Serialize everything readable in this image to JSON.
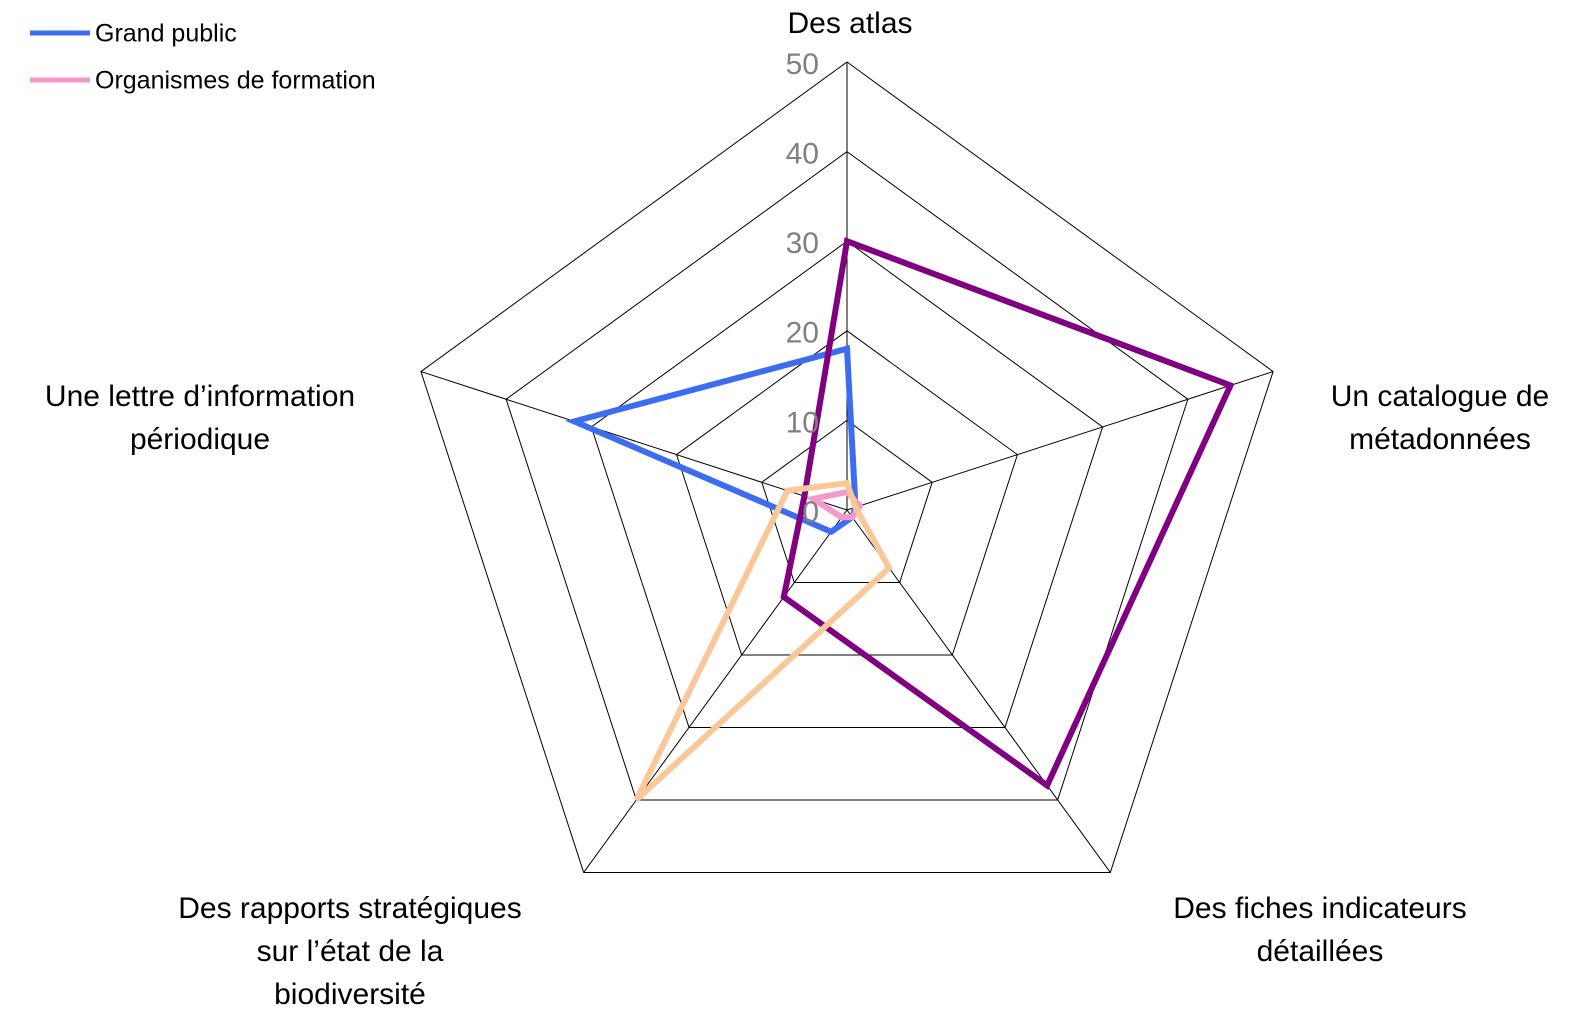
{
  "chart_data": {
    "type": "radar",
    "categories": [
      [
        "Des atlas"
      ],
      [
        "Un catalogue de",
        "métadonnées"
      ],
      [
        "Des fiches indicateurs",
        "détaillées"
      ],
      [
        "Des rapports stratégiques",
        "sur l’état de la",
        "biodiversité"
      ],
      [
        "Une lettre d’information",
        "périodique"
      ]
    ],
    "series": [
      {
        "name": "Grand public",
        "color": "#3c6cf0",
        "values": [
          18,
          1,
          1,
          3,
          32
        ]
      },
      {
        "name": "Organismes de formation",
        "color": "#f49ac8",
        "values": [
          2,
          1.5,
          1,
          1,
          4
        ]
      },
      {
        "color": "#800080",
        "values": [
          30,
          45,
          38,
          12,
          5
        ]
      },
      {
        "color": "#fac898",
        "values": [
          3,
          1,
          8,
          40,
          7
        ]
      }
    ],
    "ylim": [
      0,
      50
    ],
    "yticks": [
      0,
      10,
      20,
      30,
      40,
      50
    ],
    "grid": true
  }
}
